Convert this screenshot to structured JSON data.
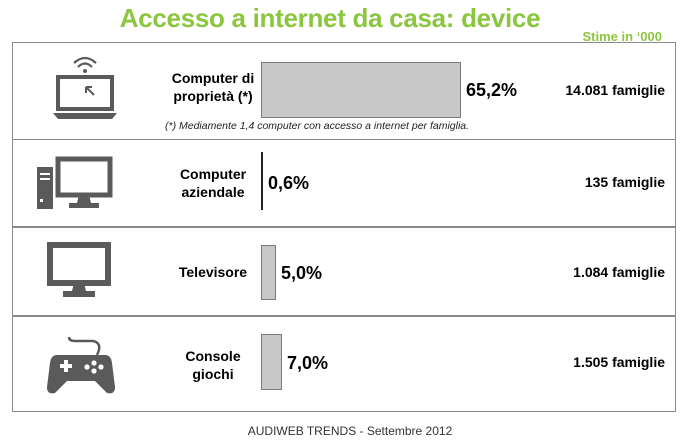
{
  "title": "Accesso a internet da casa: device",
  "unit_note": "Stime in ‘000",
  "footnote": "(*)  Mediamente 1,4 computer con accesso a internet per famiglia.",
  "footer": "AUDIWEB TRENDS  - Settembre 2012",
  "colors": {
    "title": "#8cc63f",
    "bar": "#c8c8c8",
    "icon": "#5a5a5a"
  },
  "rows": [
    {
      "icon": "laptop-wifi-icon",
      "label_line1": "Computer di",
      "label_line2": "proprietà (*)",
      "pct_label": "65,2%",
      "families": "14.081 famiglie"
    },
    {
      "icon": "desktop-computer-icon",
      "label_line1": "Computer",
      "label_line2": "aziendale",
      "pct_label": "0,6%",
      "families": "135 famiglie"
    },
    {
      "icon": "television-icon",
      "label_line1": "Televisore",
      "label_line2": "",
      "pct_label": "5,0%",
      "families": "1.084 famiglie"
    },
    {
      "icon": "game-controller-icon",
      "label_line1": "Console",
      "label_line2": "giochi",
      "pct_label": "7,0%",
      "families": "1.505 famiglie"
    }
  ],
  "chart_data": {
    "type": "bar",
    "orientation": "horizontal",
    "title": "Accesso a internet da casa: device",
    "categories": [
      "Computer di proprietà (*)",
      "Computer aziendale",
      "Televisore",
      "Console giochi"
    ],
    "values": [
      65.2,
      0.6,
      5.0,
      7.0
    ],
    "families_thousands": [
      14081,
      135,
      1084,
      1505
    ],
    "unit": "%",
    "grid": false,
    "legend": "none"
  }
}
